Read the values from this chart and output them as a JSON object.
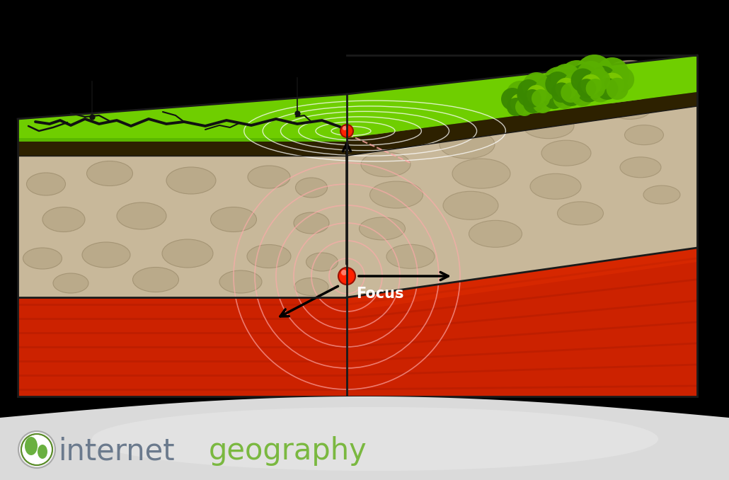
{
  "background_color": "#000000",
  "fig_width": 10.3,
  "fig_height": 6.78,
  "grass_color": "#6fce00",
  "grass_dark_color": "#5ab800",
  "soil_color": "#2d2100",
  "rock_color": "#c8b89a",
  "rock_stone_color": "#b8a888",
  "rock_stone_dark": "#a09070",
  "mantle_color": "#cc2200",
  "mantle_stripe": "#aa1800",
  "mantle_highlight": "#ee3300",
  "focus_color": "#ff2200",
  "epicenter_color": "#ff2200",
  "arrow_color": "#000000",
  "seismic_color": "#ffaaaa",
  "surface_wave_color": "#ffffff",
  "crack_color": "#111111",
  "focus_label": "Focus",
  "focus_label_color": "#ffffff",
  "title_internet_color": "#6b7a8d",
  "title_geography_color": "#7ab840",
  "shadow_color": "#cccccc",
  "shadow_alpha": 0.5,
  "edge_color": "#1a1a1a"
}
